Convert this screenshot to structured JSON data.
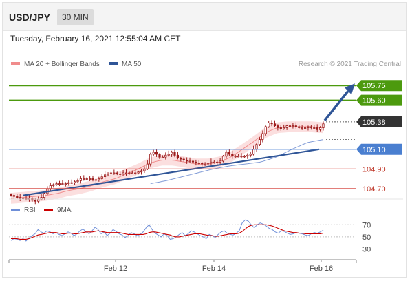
{
  "header": {
    "pair": "USD/JPY",
    "timeframe": "30 MIN",
    "datetime": "Tuesday, February 16, 2021 12:55:04 AM CET"
  },
  "legend": {
    "ma20_label": "MA 20 + Bollinger Bands",
    "ma50_label": "MA 50",
    "credit": "Research © 2021 Trading Central",
    "rsi_label": "RSI",
    "ma9_label": "9MA"
  },
  "colors": {
    "green": "#4c9a0e",
    "blue_line": "#4a7fd0",
    "red_line": "#d9534f",
    "trend": "#2f5597",
    "candle": "#9c1b1b",
    "band": "#f9c9c9",
    "rsi": "#6f8fd8",
    "rsi_ma": "#cc0000",
    "current": "#333333"
  },
  "chart_data": [
    {
      "type": "candlestick",
      "title": "USD/JPY",
      "x_ticks": [
        "Feb 12",
        "Feb 14",
        "Feb 16"
      ],
      "price_levels": [
        {
          "value": 105.75,
          "label": "105.75",
          "style": "resistance"
        },
        {
          "value": 105.6,
          "label": "105.60",
          "style": "resistance"
        },
        {
          "value": 105.38,
          "label": "105.38",
          "style": "current"
        },
        {
          "value": 105.1,
          "label": "105.10",
          "style": "pivot"
        },
        {
          "value": 104.9,
          "label": "104.90",
          "style": "support"
        },
        {
          "value": 104.7,
          "label": "104.70",
          "style": "support"
        }
      ],
      "close_series": [
        104.63,
        104.62,
        104.61,
        104.6,
        104.6,
        104.59,
        104.6,
        104.58,
        104.57,
        104.59,
        104.61,
        104.65,
        104.7,
        104.73,
        104.74,
        104.75,
        104.75,
        104.75,
        104.75,
        104.76,
        104.76,
        104.77,
        104.78,
        104.8,
        104.8,
        104.8,
        104.8,
        104.79,
        104.79,
        104.8,
        104.82,
        104.84,
        104.85,
        104.86,
        104.86,
        104.85,
        104.85,
        104.86,
        104.86,
        104.86,
        104.86,
        104.86,
        104.87,
        104.88,
        104.9,
        104.95,
        105.05,
        105.07,
        105.05,
        105.02,
        105.02,
        105.04,
        105.05,
        105.07,
        105.04,
        105.01,
        105.0,
        104.99,
        104.98,
        104.98,
        104.97,
        104.96,
        104.96,
        104.95,
        104.95,
        104.96,
        104.97,
        104.97,
        104.97,
        104.98,
        105.03,
        105.07,
        105.05,
        105.03,
        105.03,
        105.03,
        105.03,
        105.03,
        105.04,
        105.05,
        105.1,
        105.15,
        105.2,
        105.26,
        105.33,
        105.37,
        105.36,
        105.34,
        105.32,
        105.31,
        105.32,
        105.34,
        105.34,
        105.34,
        105.33,
        105.32,
        105.32,
        105.32,
        105.33,
        105.32,
        105.32,
        105.3,
        105.32,
        105.36
      ],
      "ma20_series": [
        104.6,
        104.61,
        104.62,
        104.63,
        104.65,
        104.68,
        104.7,
        104.73,
        104.77,
        104.8,
        104.85,
        104.9,
        104.96,
        104.99,
        104.99,
        104.97,
        104.95,
        104.95,
        104.97,
        105.02,
        105.1,
        105.18,
        105.27,
        105.32,
        105.33,
        105.33,
        105.33,
        105.32
      ],
      "ma50_series": [
        104.75,
        104.78,
        104.82,
        104.86,
        104.9,
        104.93,
        104.95,
        104.97,
        105.02,
        105.1,
        105.17,
        105.2
      ],
      "trendline": {
        "from": [
          "start",
          104.63
        ],
        "to": [
          "last",
          105.1
        ]
      },
      "forecast_arrow": {
        "from": 105.38,
        "to": 105.75
      },
      "y_range": [
        104.6,
        105.85
      ]
    },
    {
      "type": "line",
      "title": "RSI",
      "series": [
        {
          "name": "RSI",
          "values": [
            44,
            47,
            46,
            44,
            47,
            43,
            48,
            52,
            55,
            62,
            58,
            56,
            60,
            58,
            55,
            57,
            54,
            52,
            55,
            58,
            56,
            52,
            55,
            60,
            63,
            58,
            55,
            60,
            66,
            62,
            55,
            58,
            52,
            56,
            62,
            59,
            55,
            53,
            49,
            52,
            57,
            55,
            52,
            54,
            58,
            65,
            70,
            62,
            56,
            53,
            50,
            55,
            52,
            46,
            47,
            50,
            54,
            57,
            52,
            55,
            60,
            58,
            55,
            52,
            50,
            47,
            54,
            52,
            49,
            54,
            58,
            60,
            56,
            54,
            53,
            56,
            60,
            73,
            78,
            76,
            70,
            65,
            70,
            73,
            71,
            68,
            64,
            62,
            58,
            56,
            60,
            59,
            56,
            54,
            55,
            57,
            56,
            55,
            53,
            52,
            55,
            57,
            56,
            58,
            61
          ]
        },
        {
          "name": "9MA",
          "values": [
            47,
            47,
            47,
            46,
            46,
            46,
            47,
            49,
            51,
            53,
            54,
            55,
            56,
            57,
            57,
            57,
            56,
            55,
            55,
            56,
            56,
            55,
            55,
            56,
            57,
            58,
            58,
            58,
            59,
            60,
            59,
            58,
            57,
            57,
            57,
            57,
            57,
            56,
            55,
            54,
            54,
            54,
            54,
            54,
            54,
            55,
            57,
            58,
            58,
            57,
            56,
            55,
            54,
            53,
            51,
            50,
            50,
            51,
            52,
            53,
            54,
            55,
            55,
            55,
            54,
            53,
            52,
            52,
            51,
            51,
            52,
            53,
            54,
            55,
            55,
            55,
            56,
            59,
            63,
            67,
            69,
            70,
            70,
            70,
            70,
            70,
            69,
            68,
            66,
            64,
            62,
            60,
            59,
            58,
            57,
            57,
            56,
            56,
            55,
            55,
            55,
            55,
            55,
            55,
            56
          ]
        }
      ],
      "y_ticks": [
        70,
        50,
        30
      ],
      "y_range": [
        18,
        84
      ]
    }
  ]
}
